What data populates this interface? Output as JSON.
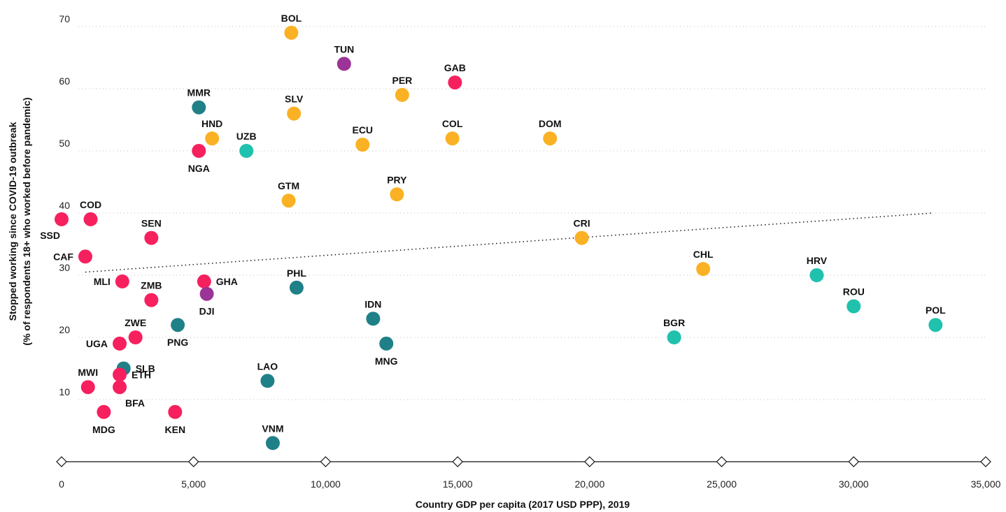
{
  "chart_data": {
    "type": "scatter",
    "title": "",
    "xlabel": "Country GDP per capita (2017 USD PPP), 2019",
    "ylabel": [
      "Stopped working since COVID-19 outbreak",
      "(% of respondents 18+ who worked before pandemic)"
    ],
    "xlim": [
      0,
      35000
    ],
    "ylim": [
      0,
      70
    ],
    "x_ticks": [
      0,
      5000,
      10000,
      15000,
      20000,
      25000,
      30000,
      35000
    ],
    "x_tick_labels": [
      "0",
      "5,000",
      "10,000",
      "15,000",
      "20,000",
      "25,000",
      "30,000",
      "35,000"
    ],
    "y_ticks": [
      10,
      20,
      30,
      40,
      50,
      60,
      70
    ],
    "y_tick_labels": [
      "10",
      "20",
      "30",
      "40",
      "50",
      "60",
      "70"
    ],
    "grid": "horizontal dotted",
    "legend": "none",
    "trendline": {
      "x": [
        900,
        33000
      ],
      "y": [
        30.5,
        40
      ]
    },
    "colors": {
      "red": "#f7205e",
      "orange": "#fbb124",
      "teal": "#208087",
      "mint": "#20c1ad",
      "purple": "#9b3496"
    },
    "points": [
      {
        "label": "BOL",
        "x": 8700,
        "y": 69,
        "color": "orange",
        "pos": "top"
      },
      {
        "label": "TUN",
        "x": 10700,
        "y": 64,
        "color": "purple",
        "pos": "top"
      },
      {
        "label": "GAB",
        "x": 14900,
        "y": 61,
        "color": "red",
        "pos": "top"
      },
      {
        "label": "PER",
        "x": 12900,
        "y": 59,
        "color": "orange",
        "pos": "top"
      },
      {
        "label": "MMR",
        "x": 5200,
        "y": 57,
        "color": "teal",
        "pos": "top"
      },
      {
        "label": "SLV",
        "x": 8800,
        "y": 56,
        "color": "orange",
        "pos": "top"
      },
      {
        "label": "HND",
        "x": 5700,
        "y": 52,
        "color": "orange",
        "pos": "top"
      },
      {
        "label": "UZB",
        "x": 7000,
        "y": 50,
        "color": "mint",
        "pos": "top"
      },
      {
        "label": "NGA",
        "x": 5200,
        "y": 50,
        "color": "red",
        "pos": "bottom"
      },
      {
        "label": "ECU",
        "x": 11400,
        "y": 51,
        "color": "orange",
        "pos": "top"
      },
      {
        "label": "COL",
        "x": 14800,
        "y": 52,
        "color": "orange",
        "pos": "top"
      },
      {
        "label": "DOM",
        "x": 18500,
        "y": 52,
        "color": "orange",
        "pos": "top"
      },
      {
        "label": "GTM",
        "x": 8600,
        "y": 42,
        "color": "orange",
        "pos": "top"
      },
      {
        "label": "PRY",
        "x": 12700,
        "y": 43,
        "color": "orange",
        "pos": "top"
      },
      {
        "label": "COD",
        "x": 1100,
        "y": 39,
        "color": "red",
        "pos": "top"
      },
      {
        "label": "SSD",
        "x": 0,
        "y": 39,
        "color": "red",
        "pos": "below-left"
      },
      {
        "label": "SEN",
        "x": 3400,
        "y": 36,
        "color": "red",
        "pos": "top"
      },
      {
        "label": "CAF",
        "x": 900,
        "y": 33,
        "color": "red",
        "pos": "left"
      },
      {
        "label": "CRI",
        "x": 19700,
        "y": 36,
        "color": "orange",
        "pos": "top"
      },
      {
        "label": "CHL",
        "x": 24300,
        "y": 31,
        "color": "orange",
        "pos": "top"
      },
      {
        "label": "HRV",
        "x": 28600,
        "y": 30,
        "color": "mint",
        "pos": "top"
      },
      {
        "label": "MLI",
        "x": 2300,
        "y": 29,
        "color": "red",
        "pos": "left"
      },
      {
        "label": "GHA",
        "x": 5400,
        "y": 29,
        "color": "red",
        "pos": "right"
      },
      {
        "label": "DJI",
        "x": 5500,
        "y": 27,
        "color": "purple",
        "pos": "bottom"
      },
      {
        "label": "PHL",
        "x": 8900,
        "y": 28,
        "color": "teal",
        "pos": "top"
      },
      {
        "label": "ZMB",
        "x": 3400,
        "y": 26,
        "color": "red",
        "pos": "top"
      },
      {
        "label": "ROU",
        "x": 30000,
        "y": 25,
        "color": "mint",
        "pos": "top"
      },
      {
        "label": "IDN",
        "x": 11800,
        "y": 23,
        "color": "teal",
        "pos": "top"
      },
      {
        "label": "POL",
        "x": 33100,
        "y": 22,
        "color": "mint",
        "pos": "top"
      },
      {
        "label": "PNG",
        "x": 4400,
        "y": 22,
        "color": "teal",
        "pos": "bottom"
      },
      {
        "label": "ZWE",
        "x": 2800,
        "y": 20,
        "color": "red",
        "pos": "top"
      },
      {
        "label": "BGR",
        "x": 23200,
        "y": 20,
        "color": "mint",
        "pos": "top"
      },
      {
        "label": "UGA",
        "x": 2200,
        "y": 19,
        "color": "red",
        "pos": "left"
      },
      {
        "label": "MNG",
        "x": 12300,
        "y": 19,
        "color": "teal",
        "pos": "bottom"
      },
      {
        "label": "SLB",
        "x": 2350,
        "y": 15,
        "color": "teal",
        "pos": "right"
      },
      {
        "label": "ETH",
        "x": 2200,
        "y": 14,
        "color": "red",
        "pos": "right"
      },
      {
        "label": "MWI",
        "x": 1000,
        "y": 12,
        "color": "red",
        "pos": "top"
      },
      {
        "label": "BFA",
        "x": 2200,
        "y": 12,
        "color": "red",
        "pos": "below-right"
      },
      {
        "label": "LAO",
        "x": 7800,
        "y": 13,
        "color": "teal",
        "pos": "top"
      },
      {
        "label": "MDG",
        "x": 1600,
        "y": 8,
        "color": "red",
        "pos": "bottom"
      },
      {
        "label": "KEN",
        "x": 4300,
        "y": 8,
        "color": "red",
        "pos": "bottom"
      },
      {
        "label": "VNM",
        "x": 8000,
        "y": 3,
        "color": "teal",
        "pos": "top"
      }
    ]
  }
}
